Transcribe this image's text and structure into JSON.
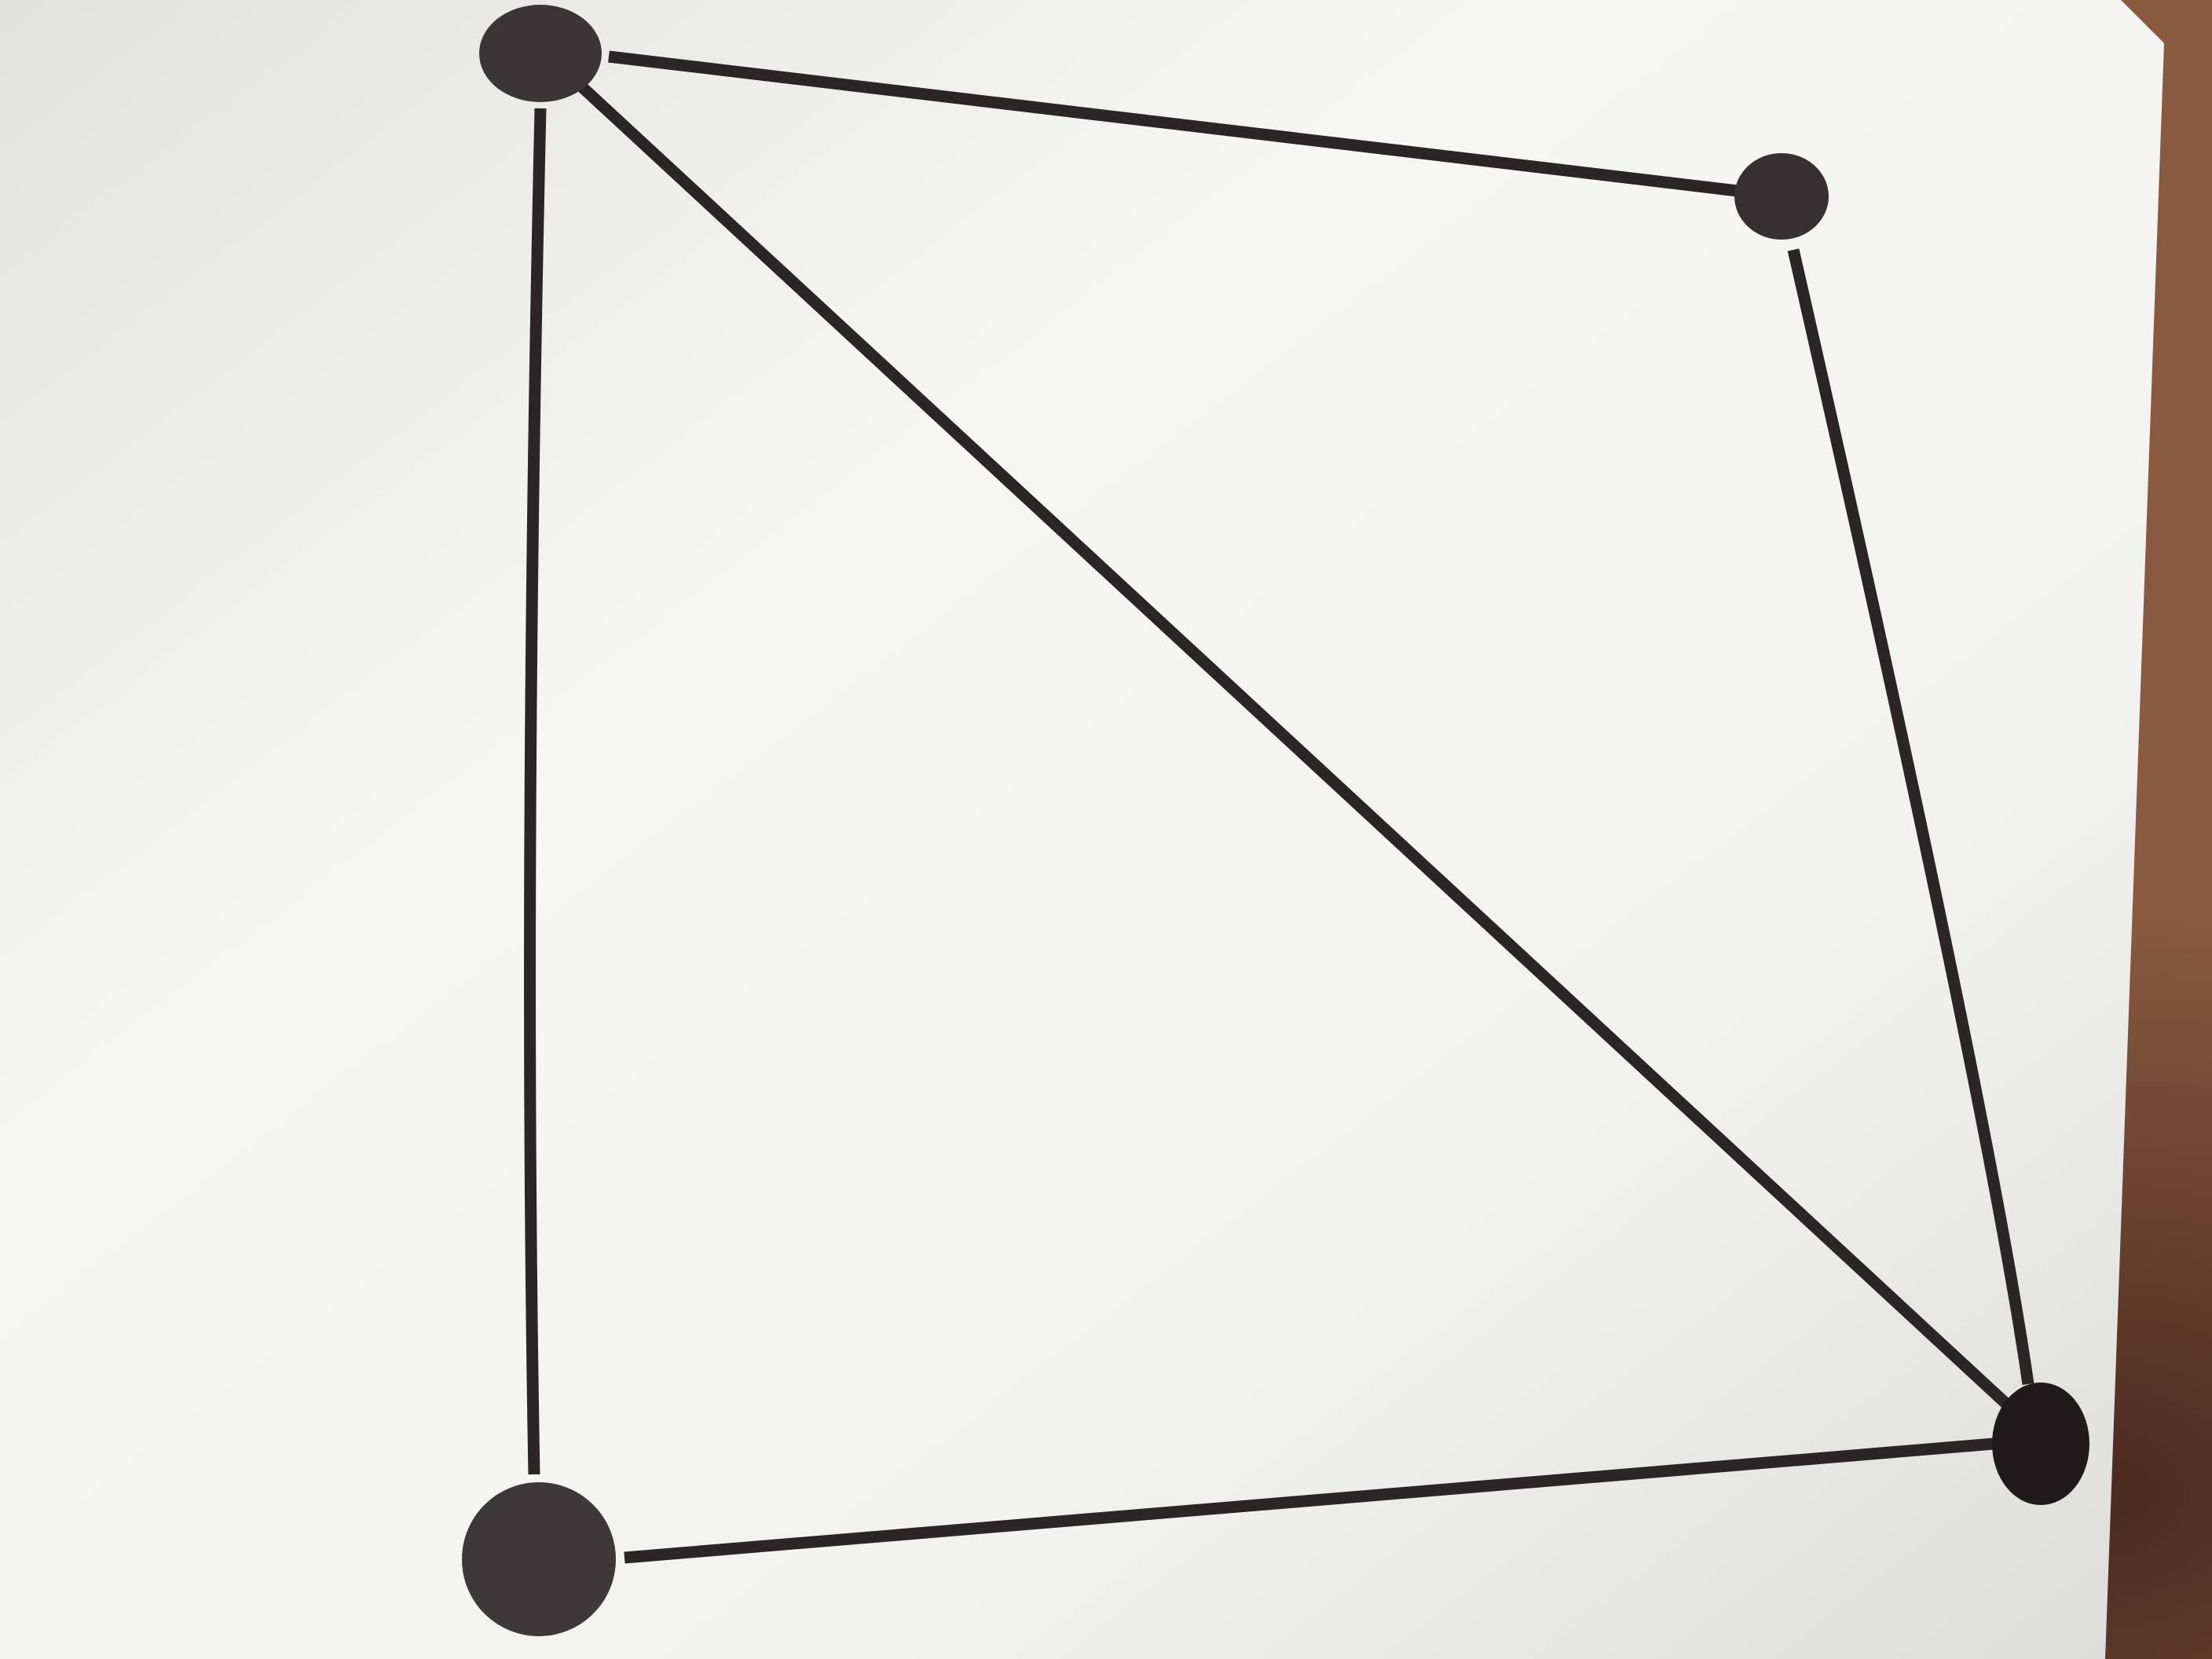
{
  "photo": {
    "subject": "graph-drawing-on-paper",
    "paper_color": "#f3f3f1",
    "background_color": "#7a4a33",
    "ink_color": "#2a2527"
  },
  "graph": {
    "vertex_count": 4,
    "edge_count": 5,
    "vertices": [
      {
        "id": "top-left",
        "label": ""
      },
      {
        "id": "top-right",
        "label": ""
      },
      {
        "id": "bottom-right",
        "label": ""
      },
      {
        "id": "bottom-left",
        "label": ""
      }
    ],
    "edges": [
      {
        "from": "top-left",
        "to": "top-right"
      },
      {
        "from": "top-right",
        "to": "bottom-right"
      },
      {
        "from": "bottom-right",
        "to": "bottom-left"
      },
      {
        "from": "bottom-left",
        "to": "top-left"
      },
      {
        "from": "top-left",
        "to": "bottom-right"
      }
    ]
  }
}
